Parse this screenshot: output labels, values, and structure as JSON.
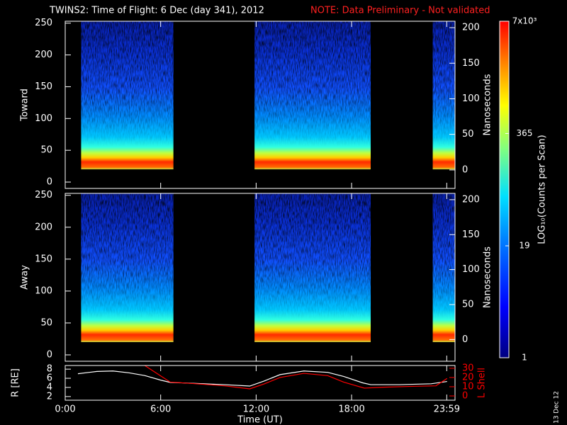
{
  "title": "TWINS2: Time of Flight:  6 Dec (day 341), 2012",
  "note": "NOTE: Data Preliminary - Not validated",
  "date_stamp": "13 Dec 12",
  "chart_data": [
    {
      "type": "spectrogram",
      "ylabel": "Toward",
      "y2label": "Nanoseconds",
      "xlim": [
        0,
        24.5
      ],
      "ylim": [
        -10,
        253
      ],
      "yticks": [
        0,
        50,
        100,
        150,
        200,
        250
      ],
      "y2lim": [
        -26,
        209
      ],
      "y2ticks": [
        0,
        50,
        100,
        150,
        200
      ],
      "intervals": [
        [
          1.0,
          6.8
        ],
        [
          11.9,
          19.2
        ],
        [
          23.1,
          24.5
        ]
      ],
      "floor": 20
    },
    {
      "type": "spectrogram",
      "ylabel": "Away",
      "y2label": "Nanoseconds",
      "xlim": [
        0,
        24.5
      ],
      "ylim": [
        -10,
        253
      ],
      "yticks": [
        0,
        50,
        100,
        150,
        200,
        250
      ],
      "y2lim": [
        -31,
        209
      ],
      "y2ticks": [
        0,
        50,
        100,
        150,
        200
      ],
      "intervals": [
        [
          1.0,
          6.8
        ],
        [
          11.9,
          19.2
        ],
        [
          23.1,
          24.5
        ]
      ],
      "floor": 20
    },
    {
      "type": "line",
      "xlabel": "Time (UT)",
      "ylabel": "R [RE]",
      "y2label": "L Shell",
      "xlim": [
        0,
        24.5
      ],
      "xticks": [
        {
          "value": 0,
          "label": "0:00"
        },
        {
          "value": 6,
          "label": "6:00"
        },
        {
          "value": 12,
          "label": "12:00"
        },
        {
          "value": 18,
          "label": "18:00"
        },
        {
          "value": 23.98,
          "label": "23:59"
        }
      ],
      "ylim": [
        1.2,
        8.8
      ],
      "yticks": [
        2,
        4,
        6,
        8
      ],
      "y2lim": [
        -4.6,
        33
      ],
      "y2ticks": [
        0,
        10,
        20,
        30
      ],
      "series": [
        {
          "color": "#ffffff",
          "x": [
            0.8,
            2,
            3,
            4,
            5,
            6,
            6.6,
            8,
            10,
            11.6,
            12.5,
            13.5,
            15,
            16.5,
            17.5,
            18.7,
            19.2,
            21,
            23,
            24
          ],
          "values": [
            7.0,
            7.5,
            7.6,
            7.2,
            6.6,
            5.6,
            5.1,
            4.9,
            4.6,
            4.3,
            5.4,
            6.8,
            7.6,
            7.3,
            6.4,
            5.0,
            4.6,
            4.6,
            4.8,
            5.3
          ]
        },
        {
          "color": "#ff0000",
          "axis": "y2",
          "x": [
            5.0,
            5.8,
            6.6,
            8,
            10,
            11.6,
            12.5,
            13.5,
            15,
            16.5,
            17.5,
            18.8,
            20,
            22,
            23.3,
            24
          ],
          "values": [
            33,
            24,
            15,
            13.5,
            11,
            7.7,
            13,
            20,
            24.5,
            22,
            15,
            8.5,
            9.5,
            10.5,
            11,
            19
          ]
        }
      ]
    },
    {
      "type": "colorbar",
      "label": "LOG₁₀(Counts per Scan)",
      "log": true,
      "ylim": [
        1,
        7000
      ],
      "yticks": [
        1,
        19,
        365,
        {
          "value": 7000,
          "label": "7x10³"
        }
      ]
    }
  ]
}
